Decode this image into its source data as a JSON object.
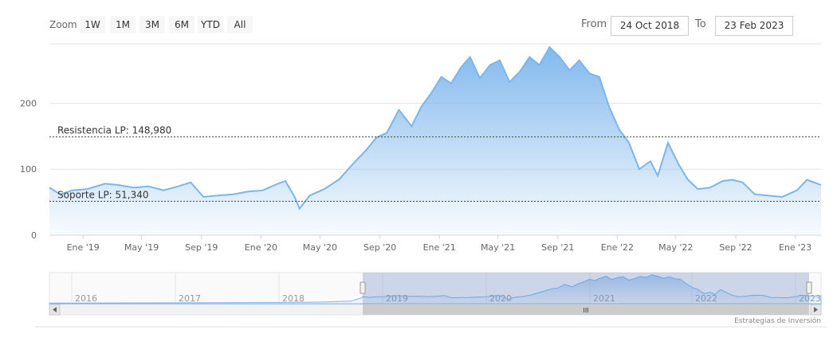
{
  "toolbar": {
    "zoom_label": "Zoom",
    "buttons": [
      "1W",
      "1M",
      "3M",
      "6M",
      "YTD",
      "All"
    ],
    "from_label": "From",
    "from_value": "24 Oct 2018",
    "to_label": "To",
    "to_value": "23 Feb 2023"
  },
  "credits": "Estrategias de Inversión",
  "colors": {
    "line": "#7cb5ec",
    "fill_top": "#7cb5ec",
    "fill_bottom": "#ffffff",
    "levels": "#2f4f2f"
  },
  "chart_data": {
    "type": "area",
    "y_ticks": [
      "0",
      "100",
      "200"
    ],
    "ylim": [
      0,
      290
    ],
    "x_ticks": [
      "Ene '19",
      "May '19",
      "Sep '19",
      "Ene '20",
      "May '20",
      "Sep '20",
      "Ene '21",
      "May '21",
      "Sep '21",
      "Ene '22",
      "May '22",
      "Sep '22",
      "Ene '23"
    ],
    "x_tick_dates": [
      "2019-01-01",
      "2019-05-01",
      "2019-09-01",
      "2020-01-01",
      "2020-05-01",
      "2020-09-01",
      "2021-01-01",
      "2021-05-01",
      "2021-09-01",
      "2022-01-01",
      "2022-05-01",
      "2022-09-01",
      "2023-01-01"
    ],
    "grid": true,
    "levels": [
      {
        "label": "Resistencia LP: 148,980",
        "value": 148.98
      },
      {
        "label": "Soporte LP: 51,340",
        "value": 51.34
      }
    ],
    "series": [
      {
        "x": [
          "2018-10-24",
          "2018-11-15",
          "2018-12-10",
          "2019-01-10",
          "2019-02-15",
          "2019-03-15",
          "2019-04-15",
          "2019-05-15",
          "2019-06-15",
          "2019-07-15",
          "2019-08-10",
          "2019-09-05",
          "2019-10-05",
          "2019-11-05",
          "2019-12-05",
          "2020-01-05",
          "2020-02-05",
          "2020-02-20",
          "2020-03-10",
          "2020-03-20",
          "2020-04-10",
          "2020-05-10",
          "2020-06-10",
          "2020-07-10",
          "2020-08-05",
          "2020-08-25",
          "2020-09-15",
          "2020-10-10",
          "2020-11-05",
          "2020-11-25",
          "2020-12-15",
          "2021-01-05",
          "2021-01-25",
          "2021-02-15",
          "2021-03-05",
          "2021-03-25",
          "2021-04-15",
          "2021-05-05",
          "2021-05-25",
          "2021-06-15",
          "2021-07-05",
          "2021-07-25",
          "2021-08-15",
          "2021-09-05",
          "2021-09-25",
          "2021-10-15",
          "2021-11-05",
          "2021-11-25",
          "2021-12-15",
          "2022-01-05",
          "2022-01-25",
          "2022-02-15",
          "2022-03-10",
          "2022-03-25",
          "2022-04-15",
          "2022-05-05",
          "2022-05-25",
          "2022-06-15",
          "2022-07-10",
          "2022-08-05",
          "2022-08-25",
          "2022-09-15",
          "2022-10-10",
          "2022-11-05",
          "2022-12-05",
          "2023-01-05",
          "2023-01-25",
          "2023-02-23"
        ],
        "y": [
          72,
          62,
          68,
          70,
          78,
          76,
          72,
          74,
          68,
          74,
          80,
          58,
          60,
          62,
          66,
          68,
          78,
          82,
          58,
          40,
          60,
          70,
          85,
          110,
          130,
          148,
          155,
          190,
          165,
          195,
          215,
          240,
          230,
          255,
          270,
          238,
          258,
          265,
          232,
          248,
          270,
          258,
          285,
          270,
          250,
          265,
          245,
          240,
          195,
          160,
          140,
          100,
          112,
          90,
          140,
          110,
          85,
          70,
          72,
          82,
          84,
          80,
          62,
          60,
          58,
          68,
          84,
          76
        ]
      }
    ]
  },
  "navigator": {
    "years": [
      "2016",
      "2017",
      "2018",
      "2019",
      "2020",
      "2021",
      "2022",
      "2023"
    ],
    "scrollbar_grip": "III"
  }
}
